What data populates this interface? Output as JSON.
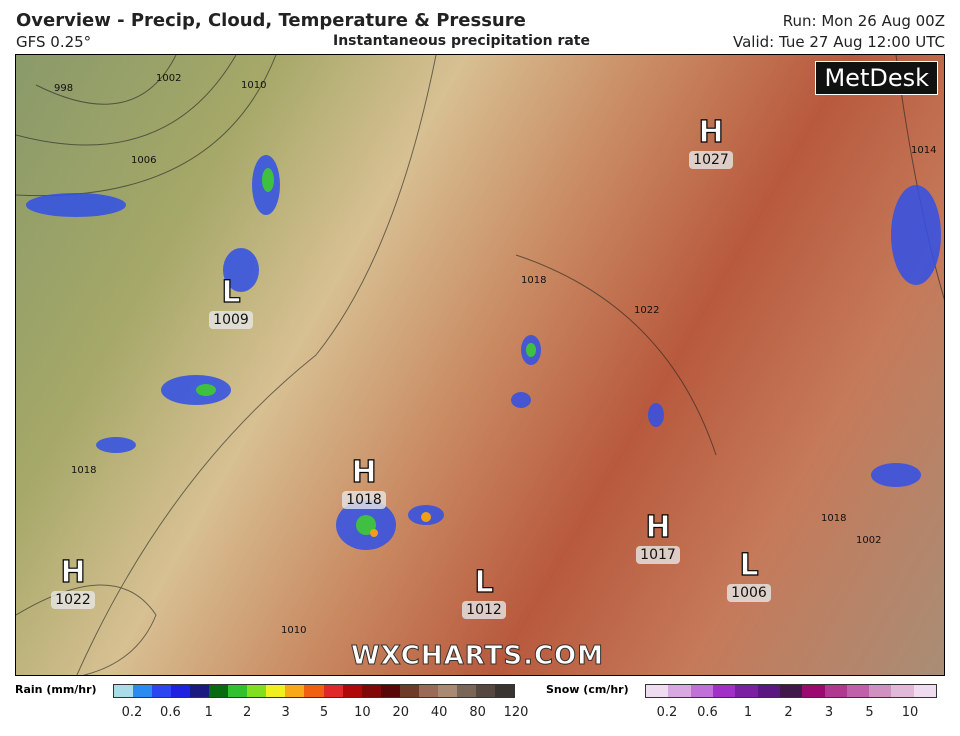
{
  "header": {
    "title": "Overview - Precip, Cloud, Temperature & Pressure",
    "model": "GFS 0.25°",
    "subtitle": "Instantaneous precipitation rate",
    "run": "Run: Mon 26 Aug 00Z",
    "valid": "Valid: Tue 27 Aug 12:00 UTC"
  },
  "logo": "MetDesk",
  "watermark": "WXCHARTS.COM",
  "pressure_centers": [
    {
      "type": "H",
      "value": "1027"
    },
    {
      "type": "L",
      "value": "1009"
    },
    {
      "type": "H",
      "value": "1018"
    },
    {
      "type": "H",
      "value": "1022"
    },
    {
      "type": "L",
      "value": "1012"
    },
    {
      "type": "H",
      "value": "1017"
    },
    {
      "type": "L",
      "value": "1006"
    }
  ],
  "isobar_labels": [
    "998",
    "1002",
    "1006",
    "1010",
    "1014",
    "1018",
    "1022",
    "1018",
    "1010",
    "1002",
    "1018"
  ],
  "legend": {
    "rain": {
      "label": "Rain (mm/hr)",
      "ticks": [
        "0.2",
        "0.6",
        "1",
        "2",
        "3",
        "5",
        "10",
        "20",
        "40",
        "80",
        "120"
      ],
      "colors": [
        "#aadde8",
        "#2a8cf0",
        "#2b46f0",
        "#2020e0",
        "#1a1a80",
        "#0a6a10",
        "#30c030",
        "#80e020",
        "#f0f020",
        "#f8a818",
        "#f06010",
        "#e02828",
        "#b00808",
        "#800808",
        "#580808",
        "#6e3a2a",
        "#9a6a58",
        "#a88a74",
        "#7a6656",
        "#554840",
        "#3a3430"
      ]
    },
    "snow": {
      "label": "Snow (cm/hr)",
      "ticks": [
        "0.2",
        "0.6",
        "1",
        "2",
        "3",
        "5",
        "10"
      ],
      "colors": [
        "#f0dcf0",
        "#d8a8e0",
        "#c070d8",
        "#a030c8",
        "#7a20a0",
        "#5a1880",
        "#40184a",
        "#9a0870",
        "#b03890",
        "#c060a8",
        "#d090c0",
        "#e0b8d8",
        "#f0dcf0"
      ]
    }
  }
}
